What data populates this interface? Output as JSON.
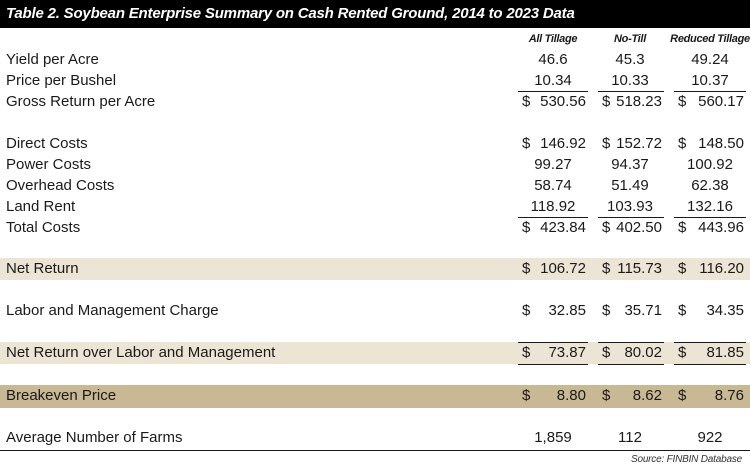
{
  "title": "Table 2. Soybean Enterprise Summary on Cash Rented Ground, 2014 to 2023 Data",
  "columns": [
    "All Tillage",
    "No-Till",
    "Reduced Tillage"
  ],
  "rows": {
    "yield": {
      "label": "Yield per Acre",
      "values": [
        "46.6",
        "45.3",
        "49.24"
      ]
    },
    "price": {
      "label": "Price per Bushel",
      "values": [
        "10.34",
        "10.33",
        "10.37"
      ]
    },
    "gross": {
      "label": "Gross Return per Acre",
      "values": [
        "530.56",
        "518.23",
        "560.17"
      ]
    },
    "direct": {
      "label": "Direct Costs",
      "values": [
        "146.92",
        "152.72",
        "148.50"
      ]
    },
    "power": {
      "label": "Power Costs",
      "values": [
        "99.27",
        "94.37",
        "100.92"
      ]
    },
    "overhead": {
      "label": "Overhead Costs",
      "values": [
        "58.74",
        "51.49",
        "62.38"
      ]
    },
    "rent": {
      "label": "Land Rent",
      "values": [
        "118.92",
        "103.93",
        "132.16"
      ]
    },
    "total": {
      "label": "Total Costs",
      "values": [
        "423.84",
        "402.50",
        "443.96"
      ]
    },
    "net": {
      "label": "Net Return",
      "values": [
        "106.72",
        "115.73",
        "116.20"
      ]
    },
    "labor": {
      "label": "Labor and Management Charge",
      "values": [
        "32.85",
        "35.71",
        "34.35"
      ]
    },
    "netlabor": {
      "label": "Net Return over Labor and Management",
      "values": [
        "73.87",
        "80.02",
        "81.85"
      ]
    },
    "breakeven": {
      "label": "Breakeven Price",
      "values": [
        "8.80",
        "8.62",
        "8.76"
      ]
    },
    "farms": {
      "label": "Average Number of Farms",
      "values": [
        "1,859",
        "112",
        "922"
      ]
    }
  },
  "currency_symbol": "$",
  "source": "Source: FINBIN Database",
  "colors": {
    "title_bg": "#000000",
    "band_light": "#ece5d6",
    "band_dark": "#c9b894"
  }
}
